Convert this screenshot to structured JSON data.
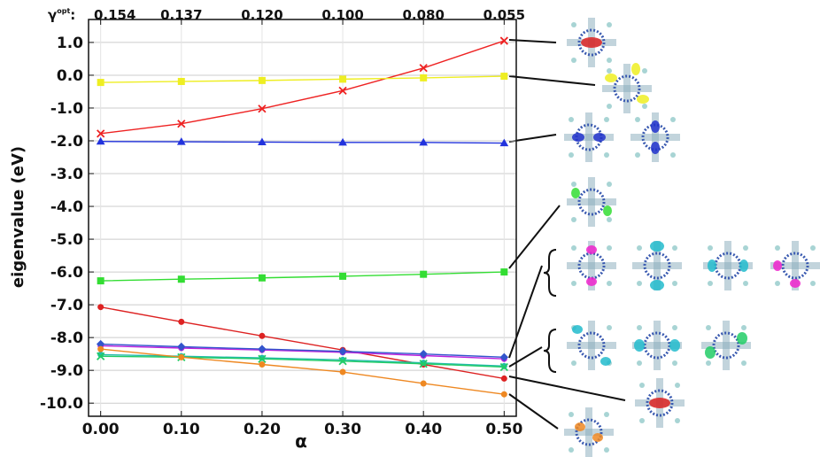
{
  "chart_data": {
    "type": "line",
    "ylabel": "eigenvalue (eV)",
    "xlabel": "α",
    "x2label": "γ",
    "x2label_sup": "opt",
    "x2label_suffix": ":",
    "x": [
      0,
      0.1,
      0.2,
      0.3,
      0.4,
      0.5
    ],
    "xlim": [
      -0.015,
      0.515
    ],
    "ylim": [
      -10.4,
      1.7
    ],
    "grid": true,
    "xticks": [
      {
        "value": 0,
        "label": "0.00"
      },
      {
        "value": 0.1,
        "label": "0.10"
      },
      {
        "value": 0.2,
        "label": "0.20"
      },
      {
        "value": 0.3,
        "label": "0.30"
      },
      {
        "value": 0.4,
        "label": "0.40"
      },
      {
        "value": 0.5,
        "label": "0.50"
      }
    ],
    "x2ticks": [
      {
        "value": 0,
        "label": "0.154"
      },
      {
        "value": 0.1,
        "label": "0.137"
      },
      {
        "value": 0.2,
        "label": "0.120"
      },
      {
        "value": 0.3,
        "label": "0.100"
      },
      {
        "value": 0.4,
        "label": "0.080"
      },
      {
        "value": 0.5,
        "label": "0.055"
      }
    ],
    "yticks": [
      {
        "value": 1,
        "label": "1.0"
      },
      {
        "value": 0,
        "label": "0.0"
      },
      {
        "value": -1,
        "label": "-1.0"
      },
      {
        "value": -2,
        "label": "-2.0"
      },
      {
        "value": -3,
        "label": "-3.0"
      },
      {
        "value": -4,
        "label": "-4.0"
      },
      {
        "value": -5,
        "label": "-5.0"
      },
      {
        "value": -6,
        "label": "-6.0"
      },
      {
        "value": -7,
        "label": "-7.0"
      },
      {
        "value": -8,
        "label": "-8.0"
      },
      {
        "value": -9,
        "label": "-9.0"
      },
      {
        "value": -10,
        "label": "-10.0"
      }
    ],
    "series": [
      {
        "color": "#ee2222",
        "marker": "x",
        "values": [
          -1.78,
          -1.48,
          -1.02,
          -0.47,
          0.22,
          1.05
        ]
      },
      {
        "color": "#eeee22",
        "marker": "square",
        "values": [
          -0.22,
          -0.19,
          -0.16,
          -0.12,
          -0.08,
          -0.03
        ]
      },
      {
        "color": "#2233dd",
        "marker": "triangle",
        "values": [
          -2.02,
          -2.03,
          -2.04,
          -2.05,
          -2.05,
          -2.07
        ]
      },
      {
        "color": "#33dd33",
        "marker": "square",
        "values": [
          -6.27,
          -6.22,
          -6.18,
          -6.13,
          -6.07,
          -6.0
        ]
      },
      {
        "color": "#dd2222",
        "marker": "circle",
        "values": [
          -7.07,
          -7.52,
          -7.95,
          -8.38,
          -8.82,
          -9.25
        ]
      },
      {
        "color": "#bb22dd",
        "marker": "circle",
        "values": [
          -8.25,
          -8.32,
          -8.38,
          -8.45,
          -8.55,
          -8.65
        ]
      },
      {
        "color": "#3355cc",
        "marker": "diamond",
        "values": [
          -8.2,
          -8.28,
          -8.35,
          -8.42,
          -8.5,
          -8.6
        ]
      },
      {
        "color": "#22bbaa",
        "marker": "circle",
        "values": [
          -8.52,
          -8.57,
          -8.62,
          -8.68,
          -8.77,
          -8.87
        ]
      },
      {
        "color": "#22cc66",
        "marker": "x",
        "values": [
          -8.57,
          -8.6,
          -8.65,
          -8.72,
          -8.8,
          -8.9
        ]
      },
      {
        "color": "#ee8822",
        "marker": "circle",
        "values": [
          -8.35,
          -8.6,
          -8.82,
          -9.05,
          -9.4,
          -9.73
        ]
      }
    ]
  }
}
